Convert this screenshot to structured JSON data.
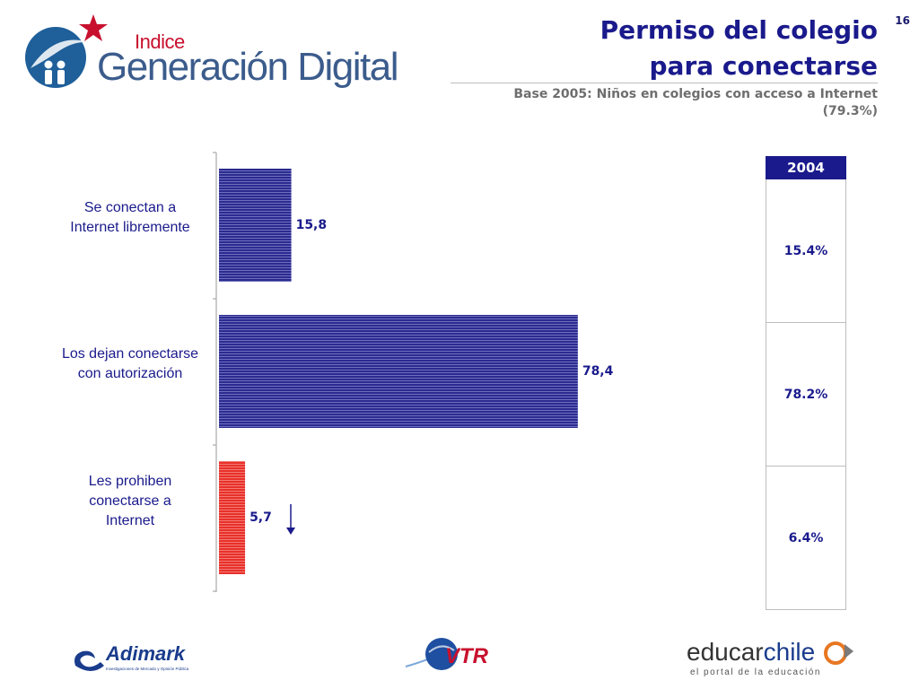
{
  "header": {
    "logo_small": "Indice",
    "logo_big": "Generación Digital",
    "slide_number": "16",
    "title_line1": "Permiso del colegio",
    "title_line2": "para conectarse",
    "subtitle_line1": "Base 2005: Niños en colegios con acceso a Internet",
    "subtitle_line2": "(79.3%)"
  },
  "chart_data": {
    "type": "bar",
    "orientation": "horizontal",
    "categories": [
      "Se conectan a Internet libremente",
      "Los dejan conectarse con autorización",
      "Les prohiben conectarse a Internet"
    ],
    "category_lines": [
      [
        "Se conectan a",
        "Internet libremente"
      ],
      [
        "Los dejan conectarse",
        "con autorización"
      ],
      [
        "Les prohiben",
        "conectarse a",
        "Internet"
      ]
    ],
    "values": [
      15.8,
      78.4,
      5.7
    ],
    "value_labels": [
      "15,8",
      "78,4",
      "5,7"
    ],
    "bar_colors": [
      "#2b2b8f",
      "#2b2b8f",
      "#e8302a"
    ],
    "xlim": [
      0,
      100
    ],
    "annotation": "down-arrow-next-to-third-bar",
    "comparison_table": {
      "header": "2004",
      "values": [
        "15.4%",
        "78.2%",
        "6.4%"
      ]
    }
  },
  "footer": {
    "adimark_name": "Adimark",
    "adimark_tagline": "Investigaciones de Mercado y Opinión Pública",
    "vtr_name": "VTR",
    "educar_name_a": "educar",
    "educar_name_b": "chile",
    "educar_tagline": "el portal de la educación"
  },
  "colors": {
    "title_blue": "#1a1a8c",
    "bar_blue": "#2b2b8f",
    "bar_red": "#e8302a",
    "logo_blue": "#3b5c8c",
    "logo_red": "#c8102e"
  }
}
